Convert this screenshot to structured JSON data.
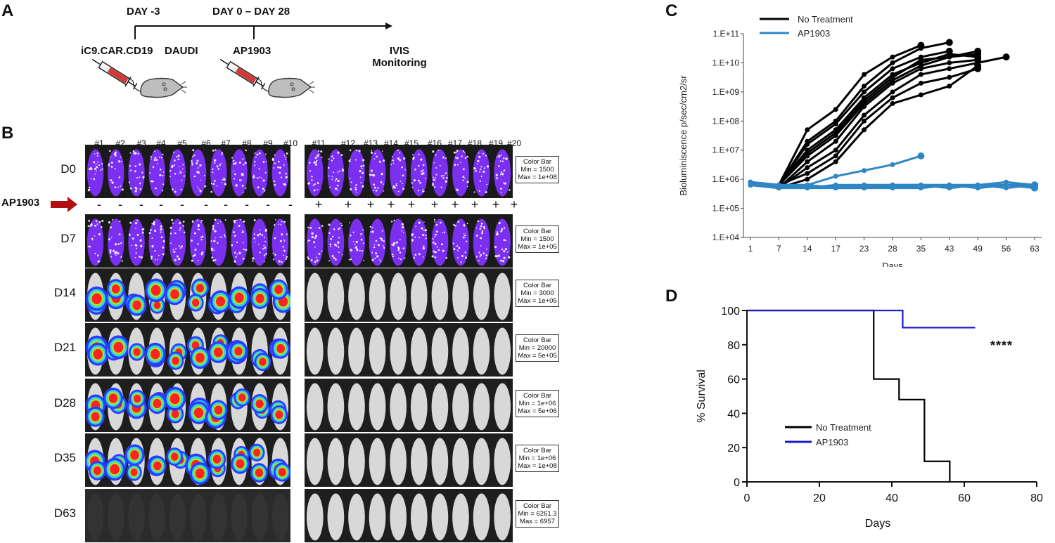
{
  "panels": {
    "a": "A",
    "b": "B",
    "c": "C",
    "d": "D"
  },
  "panel_a": {
    "day_m3": "DAY -3",
    "day_0_28": "DAY 0 – DAY 28",
    "cells_label": "iC9.CAR.CD19",
    "tumor_label": "DAUDI",
    "drug_label": "AP1903",
    "monitor_line1": "IVIS",
    "monitor_line2": "Monitoring"
  },
  "panel_b": {
    "mouse_ids_left": [
      "#1",
      "#2",
      "#3",
      "#4",
      "#5",
      "#6",
      "#7",
      "#8",
      "#9",
      "#10"
    ],
    "mouse_ids_right": [
      "#11",
      "#12",
      "#13",
      "#14",
      "#15",
      "#16",
      "#17",
      "#18",
      "#19",
      "#20"
    ],
    "treatment_label": "AP1903",
    "minus_sign": "-",
    "plus_sign": "+",
    "rows": [
      {
        "day": "D0",
        "cb_title": "Color Bar",
        "cb_min": "Min = 1500",
        "cb_max": "Max = 1e+08"
      },
      {
        "day": "D7",
        "cb_title": "Color Bar",
        "cb_min": "Min = 1500",
        "cb_max": "Max = 1e+05"
      },
      {
        "day": "D14",
        "cb_title": "Color Bar",
        "cb_min": "Min = 3000",
        "cb_max": "Max = 1e+05"
      },
      {
        "day": "D21",
        "cb_title": "Color Bar",
        "cb_min": "Min = 20000",
        "cb_max": "Max = 5e+05"
      },
      {
        "day": "D28",
        "cb_title": "Color Bar",
        "cb_min": "Min = 1e+06",
        "cb_max": "Max = 5e+06"
      },
      {
        "day": "D35",
        "cb_title": "Color Bar",
        "cb_min": "Min = 1e+06",
        "cb_max": "Max = 1e+08"
      },
      {
        "day": "D63",
        "cb_title": "Color Bar",
        "cb_min": "Min = 6261.3",
        "cb_max": "Max = 6957"
      }
    ]
  },
  "colors": {
    "black_series": "#000000",
    "ap_series": "#2f86c5",
    "ap_survival": "#1a1acc",
    "arrow": "#b01010"
  },
  "chart_data": [
    {
      "type": "line",
      "title": "",
      "xlabel": "Days",
      "ylabel": "Bioluminiscence p/sec/cm2/sr",
      "categories": [
        "1",
        "7",
        "14",
        "17",
        "23",
        "28",
        "35",
        "43",
        "49",
        "56",
        "63"
      ],
      "yscale": "log",
      "ylim_exp": [
        4,
        11
      ],
      "y_tick_labels": [
        "1.E+04",
        "1.E+05",
        "1.E+06",
        "1.E+07",
        "1.E+08",
        "1.E+09",
        "1.E+10",
        "1.E+11"
      ],
      "legend": [
        {
          "name": "No Treatment",
          "color": "#000000"
        },
        {
          "name": "AP1903",
          "color": "#2f86c5"
        }
      ],
      "series": [
        {
          "name": "No Treatment",
          "values": [
            5.8,
            5.8,
            7.7,
            8.4,
            9.6,
            10.2,
            10.6,
            null,
            null,
            null,
            null
          ]
        },
        {
          "name": "No Treatment",
          "values": [
            5.9,
            5.8,
            7.3,
            8.0,
            9.2,
            10.0,
            10.5,
            10.7,
            null,
            null,
            null
          ]
        },
        {
          "name": "No Treatment",
          "values": [
            5.8,
            5.8,
            7.2,
            7.9,
            9.0,
            9.8,
            10.2,
            10.4,
            null,
            null,
            null
          ]
        },
        {
          "name": "No Treatment",
          "values": [
            5.8,
            5.8,
            7.0,
            7.7,
            8.8,
            9.6,
            10.0,
            10.3,
            10.2,
            null,
            null
          ]
        },
        {
          "name": "No Treatment",
          "values": [
            5.9,
            5.8,
            6.8,
            7.5,
            8.6,
            9.4,
            9.9,
            10.2,
            10.3,
            null,
            null
          ]
        },
        {
          "name": "No Treatment",
          "values": [
            5.8,
            5.7,
            6.6,
            7.3,
            8.5,
            9.3,
            9.8,
            10.0,
            10.1,
            null,
            null
          ]
        },
        {
          "name": "No Treatment",
          "values": [
            5.8,
            5.8,
            6.9,
            7.6,
            8.7,
            9.5,
            10.1,
            10.2,
            10.4,
            null,
            null
          ]
        },
        {
          "name": "No Treatment",
          "values": [
            5.8,
            5.7,
            6.4,
            7.0,
            8.2,
            9.0,
            9.6,
            9.8,
            10.0,
            10.2,
            null
          ]
        },
        {
          "name": "No Treatment",
          "values": [
            5.8,
            5.8,
            6.2,
            6.8,
            8.0,
            8.8,
            9.3,
            9.5,
            9.8,
            null,
            null
          ]
        },
        {
          "name": "No Treatment",
          "values": [
            5.9,
            5.7,
            6.0,
            6.6,
            7.7,
            8.6,
            8.9,
            9.2,
            9.9,
            null,
            null
          ]
        },
        {
          "name": "AP1903",
          "values": [
            5.9,
            5.8,
            5.8,
            6.1,
            6.3,
            6.5,
            6.8,
            null,
            null,
            null,
            null
          ]
        },
        {
          "name": "AP1903",
          "values": [
            5.8,
            5.8,
            5.7,
            5.8,
            5.8,
            5.8,
            5.8,
            5.8,
            5.8,
            5.8,
            5.8
          ]
        },
        {
          "name": "AP1903",
          "values": [
            5.8,
            5.7,
            5.7,
            5.7,
            5.7,
            5.8,
            5.8,
            5.8,
            5.8,
            5.8,
            5.8
          ]
        },
        {
          "name": "AP1903",
          "values": [
            5.9,
            5.8,
            5.8,
            5.7,
            5.8,
            5.8,
            5.8,
            5.7,
            5.8,
            5.8,
            5.7
          ]
        },
        {
          "name": "AP1903",
          "values": [
            5.8,
            5.8,
            5.7,
            5.8,
            5.7,
            5.7,
            5.7,
            5.8,
            5.7,
            5.8,
            5.8
          ]
        },
        {
          "name": "AP1903",
          "values": [
            5.9,
            5.7,
            5.8,
            5.7,
            5.8,
            5.7,
            5.8,
            5.7,
            5.8,
            5.7,
            5.8
          ]
        },
        {
          "name": "AP1903",
          "values": [
            5.8,
            5.8,
            5.7,
            5.8,
            5.7,
            5.8,
            5.7,
            5.8,
            5.7,
            5.8,
            5.8
          ]
        },
        {
          "name": "AP1903",
          "values": [
            5.8,
            5.7,
            5.8,
            5.7,
            5.7,
            5.8,
            5.8,
            5.7,
            5.8,
            5.9,
            5.8
          ]
        },
        {
          "name": "AP1903",
          "values": [
            5.9,
            5.8,
            5.7,
            5.8,
            5.8,
            5.7,
            5.8,
            5.8,
            5.7,
            5.8,
            5.7
          ]
        },
        {
          "name": "AP1903",
          "values": [
            5.8,
            5.8,
            5.8,
            5.7,
            5.8,
            5.8,
            5.7,
            5.8,
            5.8,
            5.8,
            5.8
          ]
        }
      ]
    },
    {
      "type": "line",
      "subtype": "step",
      "title": "",
      "xlabel": "Days",
      "ylabel": "% Survival",
      "xlim": [
        0,
        80
      ],
      "ylim": [
        0,
        100
      ],
      "x_ticks": [
        "0",
        "20",
        "40",
        "60",
        "80"
      ],
      "y_ticks": [
        "0",
        "20",
        "40",
        "60",
        "80",
        "100"
      ],
      "annotation": "****",
      "legend": [
        {
          "name": "No Treatment",
          "color": "#000000"
        },
        {
          "name": "AP1903",
          "color": "#1a1acc"
        }
      ],
      "series": [
        {
          "name": "No Treatment",
          "x": [
            0,
            35,
            35,
            42,
            42,
            49,
            49,
            56,
            56
          ],
          "y": [
            100,
            100,
            60,
            60,
            48,
            48,
            12,
            12,
            0
          ]
        },
        {
          "name": "AP1903",
          "x": [
            0,
            43,
            43,
            63
          ],
          "y": [
            100,
            100,
            90,
            90
          ]
        }
      ]
    }
  ]
}
